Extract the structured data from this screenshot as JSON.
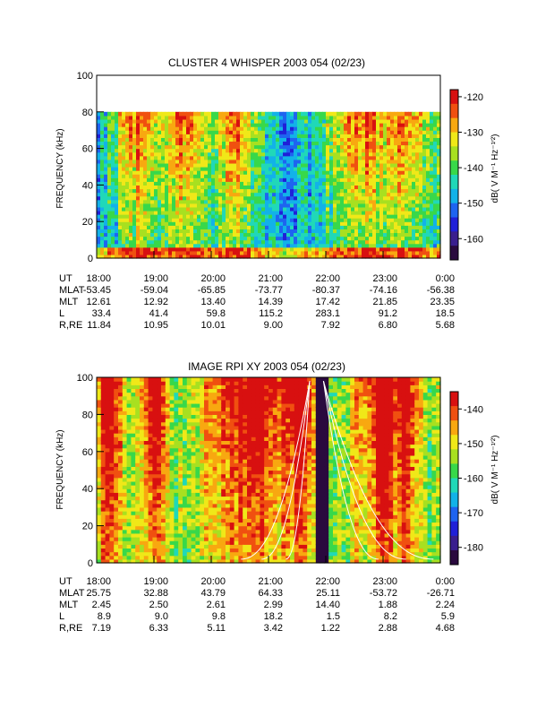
{
  "colors": {
    "cmap": [
      "#2a0a3e",
      "#3a1e8e",
      "#2020d8",
      "#1e64f0",
      "#12b2e8",
      "#20d8b8",
      "#38d84a",
      "#a8e020",
      "#f0e818",
      "#f8a810",
      "#f05010",
      "#d81010"
    ]
  },
  "chart_data": [
    {
      "type": "heatmap",
      "title": "CLUSTER 4 WHISPER 2003 054 (02/23)",
      "ylabel": "FREQUENCY (kHz)",
      "ylim": [
        0,
        100
      ],
      "y_ticks": [
        0,
        20,
        40,
        60,
        80,
        100
      ],
      "x_ticks": [
        "18:00",
        "19:00",
        "20:00",
        "21:00",
        "22:00",
        "23:00",
        "0:00"
      ],
      "data_ceiling_khz": 80,
      "colorbar": {
        "label": "dB( V M⁻¹ Hz⁻¹′²)",
        "ticks": [
          -120,
          -130,
          -140,
          -150,
          -160
        ],
        "range": [
          -166,
          -118
        ]
      },
      "orbit_table": {
        "rows": [
          {
            "label": "UT",
            "values": [
              "18:00",
              "19:00",
              "20:00",
              "21:00",
              "22:00",
              "23:00",
              "0:00"
            ]
          },
          {
            "label": "MLAT",
            "values": [
              "-53.45",
              "-59.04",
              "-65.85",
              "-73.77",
              "-80.37",
              "-74.16",
              "-56.38"
            ]
          },
          {
            "label": "MLT",
            "values": [
              "12.61",
              "12.92",
              "13.40",
              "14.39",
              "17.42",
              "21.85",
              "23.35"
            ]
          },
          {
            "label": "L",
            "values": [
              "33.4",
              "41.4",
              "59.8",
              "115.2",
              "283.1",
              "91.2",
              "18.5"
            ]
          },
          {
            "label": "R,RE",
            "values": [
              "11.84",
              "10.95",
              "10.01",
              "9.00",
              "7.92",
              "6.80",
              "5.68"
            ]
          }
        ]
      }
    },
    {
      "type": "heatmap",
      "title": "IMAGE RPI XY 2003 054 (02/23)",
      "ylabel": "FREQUENCY (kHz)",
      "ylim": [
        0,
        100
      ],
      "y_ticks": [
        0,
        20,
        40,
        60,
        80,
        100
      ],
      "x_ticks": [
        "18:00",
        "19:00",
        "20:00",
        "21:00",
        "22:00",
        "23:00",
        "0:00"
      ],
      "colorbar": {
        "label": "dB( V M⁻¹ Hz⁻¹′²)",
        "ticks": [
          -140,
          -150,
          -160,
          -170,
          -180
        ],
        "range": [
          -185,
          -135
        ]
      },
      "orbit_table": {
        "rows": [
          {
            "label": "UT",
            "values": [
              "18:00",
              "19:00",
              "20:00",
              "21:00",
              "22:00",
              "23:00",
              "0:00"
            ]
          },
          {
            "label": "MLAT",
            "values": [
              "25.75",
              "32.88",
              "43.79",
              "64.33",
              "25.11",
              "-53.72",
              "-26.71"
            ]
          },
          {
            "label": "MLT",
            "values": [
              "2.45",
              "2.50",
              "2.61",
              "2.99",
              "14.40",
              "1.88",
              "2.24"
            ]
          },
          {
            "label": "L",
            "values": [
              "8.9",
              "9.0",
              "9.8",
              "18.2",
              "1.5",
              "8.2",
              "5.9"
            ]
          },
          {
            "label": "R,RE",
            "values": [
              "7.19",
              "6.33",
              "5.11",
              "3.42",
              "1.22",
              "2.88",
              "4.68"
            ]
          }
        ]
      }
    }
  ]
}
